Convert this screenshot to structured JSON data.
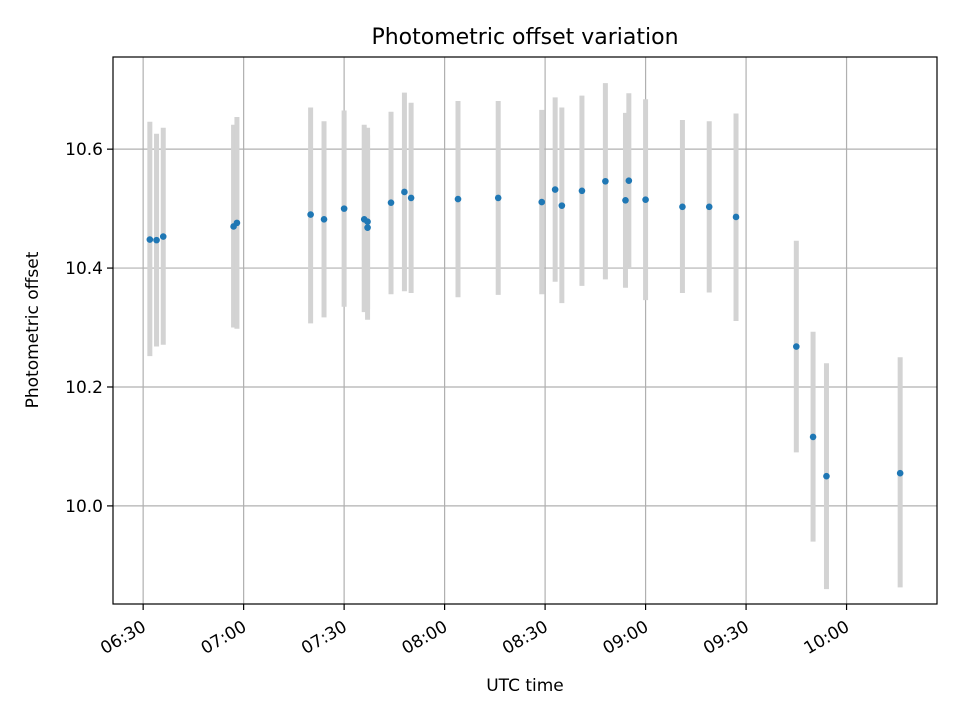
{
  "chart_data": {
    "type": "scatter",
    "title": "Photometric offset variation",
    "xlabel": "UTC time",
    "ylabel": "Photometric offset",
    "x_ticks": [
      "06:30",
      "07:00",
      "07:30",
      "08:00",
      "08:30",
      "09:00",
      "09:30",
      "10:00"
    ],
    "y_ticks": [
      "10.0",
      "10.2",
      "10.4",
      "10.6"
    ],
    "xlim": [
      "06:21",
      "10:27"
    ],
    "ylim": [
      9.835,
      10.755
    ],
    "grid": true,
    "marker_color": "#1f77b4",
    "errorbar_color": "#d3d3d3",
    "points": [
      {
        "t": "06:32",
        "y": 10.448,
        "lo": 10.252,
        "hi": 10.646
      },
      {
        "t": "06:34",
        "y": 10.447,
        "lo": 10.268,
        "hi": 10.626
      },
      {
        "t": "06:36",
        "y": 10.453,
        "lo": 10.271,
        "hi": 10.636
      },
      {
        "t": "06:57",
        "y": 10.47,
        "lo": 10.3,
        "hi": 10.641
      },
      {
        "t": "06:58",
        "y": 10.476,
        "lo": 10.298,
        "hi": 10.654
      },
      {
        "t": "07:20",
        "y": 10.49,
        "lo": 10.307,
        "hi": 10.67
      },
      {
        "t": "07:24",
        "y": 10.482,
        "lo": 10.317,
        "hi": 10.647
      },
      {
        "t": "07:30",
        "y": 10.5,
        "lo": 10.335,
        "hi": 10.665
      },
      {
        "t": "07:36",
        "y": 10.482,
        "lo": 10.326,
        "hi": 10.641
      },
      {
        "t": "07:37",
        "y": 10.478,
        "lo": 10.331,
        "hi": 10.636
      },
      {
        "t": "07:37",
        "y": 10.468,
        "lo": 10.313,
        "hi": 10.623
      },
      {
        "t": "07:44",
        "y": 10.51,
        "lo": 10.356,
        "hi": 10.663
      },
      {
        "t": "07:48",
        "y": 10.528,
        "lo": 10.361,
        "hi": 10.695
      },
      {
        "t": "07:50",
        "y": 10.518,
        "lo": 10.358,
        "hi": 10.678
      },
      {
        "t": "08:04",
        "y": 10.516,
        "lo": 10.351,
        "hi": 10.681
      },
      {
        "t": "08:16",
        "y": 10.518,
        "lo": 10.355,
        "hi": 10.681
      },
      {
        "t": "08:29",
        "y": 10.511,
        "lo": 10.356,
        "hi": 10.666
      },
      {
        "t": "08:33",
        "y": 10.532,
        "lo": 10.377,
        "hi": 10.687
      },
      {
        "t": "08:35",
        "y": 10.505,
        "lo": 10.341,
        "hi": 10.67
      },
      {
        "t": "08:41",
        "y": 10.53,
        "lo": 10.37,
        "hi": 10.69
      },
      {
        "t": "08:48",
        "y": 10.546,
        "lo": 10.381,
        "hi": 10.711
      },
      {
        "t": "08:54",
        "y": 10.514,
        "lo": 10.367,
        "hi": 10.661
      },
      {
        "t": "08:55",
        "y": 10.547,
        "lo": 10.4,
        "hi": 10.694
      },
      {
        "t": "09:00",
        "y": 10.515,
        "lo": 10.346,
        "hi": 10.684
      },
      {
        "t": "09:11",
        "y": 10.503,
        "lo": 10.358,
        "hi": 10.649
      },
      {
        "t": "09:19",
        "y": 10.503,
        "lo": 10.359,
        "hi": 10.647
      },
      {
        "t": "09:27",
        "y": 10.486,
        "lo": 10.311,
        "hi": 10.66
      },
      {
        "t": "09:45",
        "y": 10.268,
        "lo": 10.09,
        "hi": 10.446
      },
      {
        "t": "09:50",
        "y": 10.116,
        "lo": 9.94,
        "hi": 10.293
      },
      {
        "t": "09:54",
        "y": 10.05,
        "lo": 9.86,
        "hi": 10.24
      },
      {
        "t": "10:16",
        "y": 10.055,
        "lo": 9.863,
        "hi": 10.25
      }
    ]
  }
}
